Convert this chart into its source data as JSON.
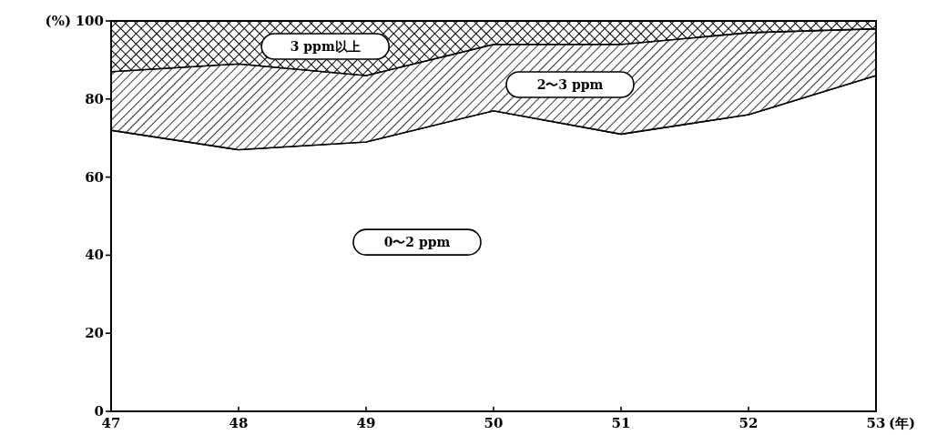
{
  "chart_data": {
    "type": "area",
    "stacked": true,
    "xlabel": "(年)",
    "ylabel": "(%)",
    "x": [
      47,
      48,
      49,
      50,
      51,
      52,
      53
    ],
    "xlim": [
      47,
      53
    ],
    "xticks": [
      47,
      48,
      49,
      50,
      51,
      52,
      53
    ],
    "ylim": [
      0,
      100
    ],
    "yticks": [
      0,
      20,
      40,
      60,
      80,
      100
    ],
    "series": [
      {
        "name": "0〜2 ppm",
        "color": "#ffffff",
        "values": [
          72,
          67,
          69,
          77,
          71,
          76,
          86
        ]
      },
      {
        "name": "2〜3 ppm",
        "color": "#000000",
        "values": [
          15,
          22,
          17,
          17,
          23,
          21,
          12
        ]
      },
      {
        "name": "3 ppm以上",
        "color": "#000000",
        "values": [
          13,
          11,
          14,
          6,
          6,
          3,
          2
        ]
      }
    ]
  }
}
